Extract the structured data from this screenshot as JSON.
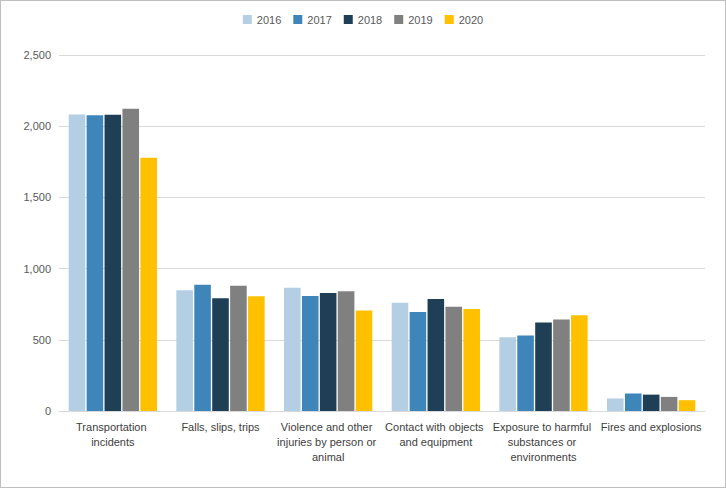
{
  "chart_data": {
    "type": "bar",
    "categories": [
      "Transportation incidents",
      "Falls, slips, trips",
      "Violence and other injuries by person or animal",
      "Contact with objects and equipment",
      "Exposure to harmful substances or environments",
      "Fires and explosions"
    ],
    "series": [
      {
        "name": "2016",
        "color": "#b4cfe4",
        "values": [
          2083,
          848,
          866,
          761,
          518,
          88
        ]
      },
      {
        "name": "2017",
        "color": "#3e86b9",
        "values": [
          2077,
          887,
          807,
          695,
          531,
          123
        ]
      },
      {
        "name": "2018",
        "color": "#1e3f56",
        "values": [
          2080,
          791,
          828,
          786,
          621,
          115
        ]
      },
      {
        "name": "2019",
        "color": "#808080",
        "values": [
          2122,
          880,
          841,
          732,
          642,
          99
        ]
      },
      {
        "name": "2020",
        "color": "#ffc000",
        "values": [
          1778,
          805,
          705,
          716,
          672,
          76
        ]
      }
    ],
    "ylim": [
      0,
      2500
    ],
    "yticks": [
      0,
      500,
      {
        "value": 1000,
        "label": "1,000"
      },
      {
        "value": 1500,
        "label": "1,500"
      },
      {
        "value": 2000,
        "label": "2,000"
      },
      {
        "value": 2500,
        "label": "2,500"
      }
    ],
    "grid": true,
    "legend": "top"
  }
}
